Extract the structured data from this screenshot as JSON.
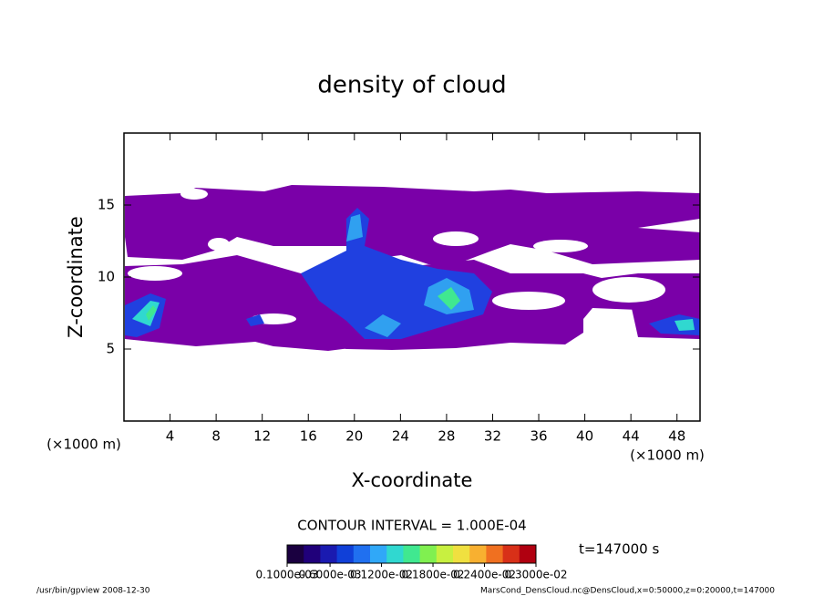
{
  "chart_data": {
    "type": "contour",
    "title": "density of cloud",
    "xlabel": "X-coordinate",
    "ylabel": "Z-coordinate",
    "xunit": "(×1000 m)",
    "yunit": "(×1000 m)",
    "xlim": [
      0,
      50
    ],
    "ylim": [
      0,
      20
    ],
    "xticks": [
      4,
      8,
      12,
      16,
      20,
      24,
      28,
      32,
      36,
      40,
      44,
      48
    ],
    "yticks": [
      5,
      10,
      15
    ],
    "contour_interval": "CONTOUR INTERVAL = 1.000E-04",
    "time": "t=147000 s",
    "colorbar": {
      "clim": [
        0.0001,
        0.003
      ],
      "ticks": [
        {
          "value": 0.0001,
          "label": "0.1000e-03"
        },
        {
          "value": 0.0006,
          "label": "0.6000e-03"
        },
        {
          "value": 0.0012,
          "label": "0.1200e-02"
        },
        {
          "value": 0.0018,
          "label": "0.1800e-02"
        },
        {
          "value": 0.0024,
          "label": "0.2400e-02"
        },
        {
          "value": 0.003,
          "label": "0.3000e-02"
        }
      ],
      "colors": [
        "#1a0040",
        "#20007a",
        "#1a1ab0",
        "#1040d8",
        "#2070f0",
        "#30a8f8",
        "#30d8d0",
        "#40e890",
        "#80f050",
        "#c8f040",
        "#f0e040",
        "#f8b030",
        "#f07020",
        "#d83018",
        "#b00010"
      ]
    },
    "footer_left": "/usr/bin/gpview   2008-12-30",
    "footer_right": "MarsCond_DensCloud.nc@DensCloud,x=0:50000,z=0:20000,t=147000"
  }
}
